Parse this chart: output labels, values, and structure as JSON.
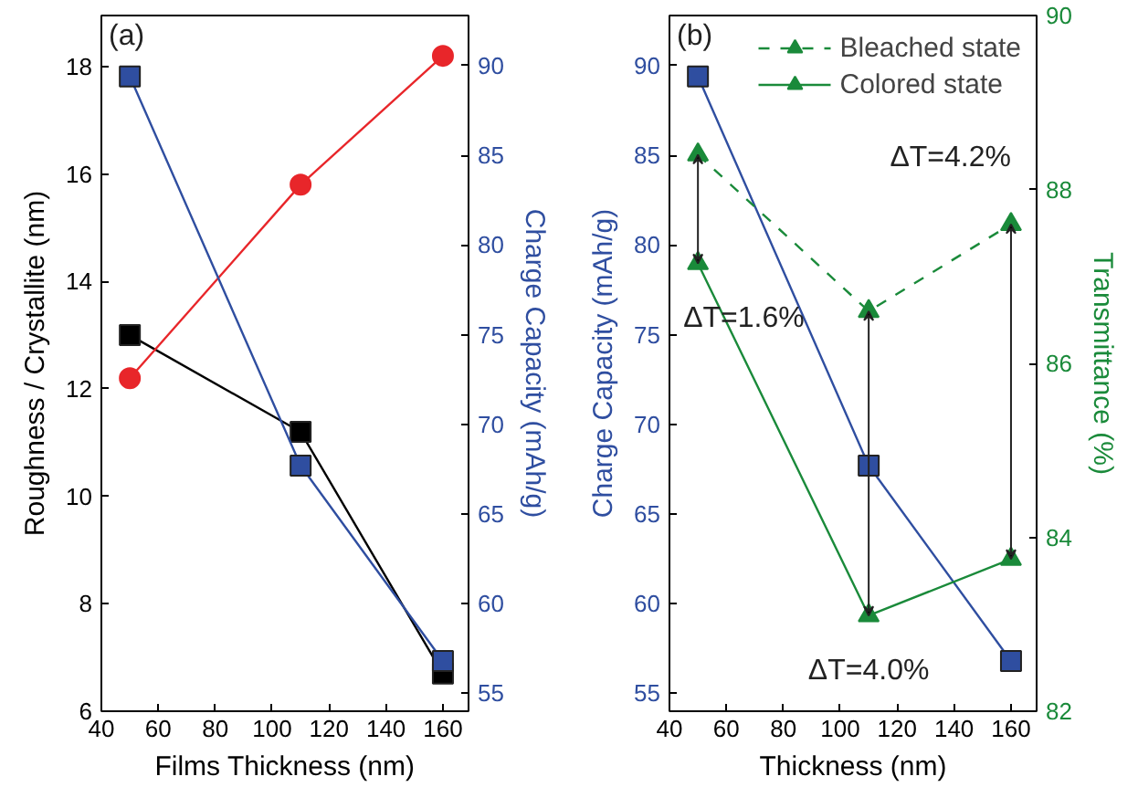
{
  "chart_data": [
    {
      "type": "line",
      "title": "(a)",
      "xlabel": "Films Thickness (nm)",
      "ylabel": "Roughness / Crystallite (nm)",
      "y2label": "Charge Capacity (mAh/g)",
      "x": [
        50,
        110,
        160
      ],
      "xlim": [
        40,
        169
      ],
      "xticks": [
        40,
        60,
        80,
        100,
        120,
        140,
        160
      ],
      "ylim": [
        6,
        18.95
      ],
      "yticks": [
        6,
        8,
        10,
        12,
        14,
        16,
        18
      ],
      "y2lim": [
        54,
        92.8
      ],
      "y2ticks": [
        55,
        60,
        65,
        70,
        75,
        80,
        85,
        90
      ],
      "grid": false,
      "legend": false,
      "series": [
        {
          "color": "#000000",
          "marker": "square",
          "values": [
            13.0,
            11.2,
            6.7
          ]
        },
        {
          "color": "#e8262a",
          "marker": "circle",
          "values": [
            12.2,
            15.8,
            18.2
          ]
        },
        {
          "color": "#2f4ea0",
          "marker": "square",
          "axis": "y2",
          "values": [
            89.4,
            67.7,
            56.8
          ]
        }
      ]
    },
    {
      "type": "line",
      "title": "(b)",
      "xlabel": "Thickness (nm)",
      "ylabel": "Charge Capacity (mAh/g)",
      "y2label": "Transmittance (%)",
      "x": [
        50,
        110,
        160
      ],
      "xlim": [
        40,
        169
      ],
      "xticks": [
        40,
        60,
        80,
        100,
        120,
        140,
        160
      ],
      "ylim": [
        54,
        92.8
      ],
      "yticks": [
        55,
        60,
        65,
        70,
        75,
        80,
        85,
        90
      ],
      "y2lim": [
        82,
        90
      ],
      "y2ticks": [
        82,
        84,
        86,
        88,
        90
      ],
      "grid": false,
      "legend": "top right",
      "series": [
        {
          "color": "#2f4ea0",
          "marker": "square",
          "values": [
            89.4,
            67.7,
            56.8
          ]
        },
        {
          "name": "Bleached state",
          "color": "#1a8a3a",
          "marker": "triangle",
          "line_style": "dashed",
          "axis": "y2",
          "values": [
            88.4,
            86.6,
            87.6
          ]
        },
        {
          "name": "Colored state",
          "color": "#1a8a3a",
          "marker": "triangle",
          "line_style": "solid",
          "axis": "y2",
          "values": [
            87.15,
            83.1,
            83.75
          ]
        }
      ],
      "annotations": [
        "ΔT=1.6%",
        "ΔT=4.0%",
        "ΔT=4.2%"
      ]
    }
  ]
}
